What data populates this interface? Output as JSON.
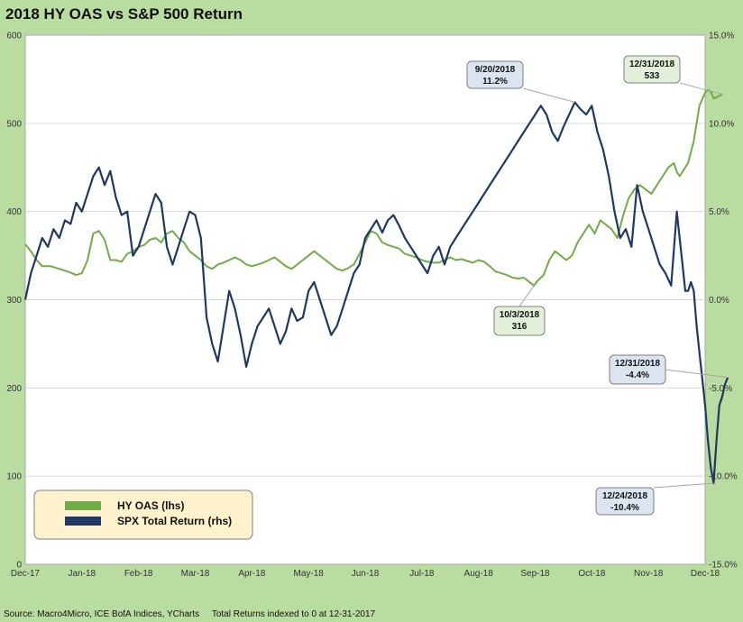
{
  "header": {
    "title": "2018 HY OAS vs S&P 500 Return"
  },
  "footer": {
    "source": "Source: Macro4Micro, ICE BofA Indices, YCharts",
    "note": "Total Returns indexed to 0 at 12-31-2017"
  },
  "colors": {
    "oas": "#70ad47",
    "spx": "#1f3864",
    "background": "#b9dca0",
    "plot": "#ffffff",
    "callout_fill": "#dbe5f1",
    "callout_fill_green": "#e2efd9",
    "legend_fill": "#fff2cc"
  },
  "chart_data": {
    "type": "line",
    "title": "2018 HY OAS vs S&P 500 Return",
    "x_tick_labels": [
      "Dec-17",
      "Jan-18",
      "Feb-18",
      "Mar-18",
      "Apr-18",
      "May-18",
      "Jun-18",
      "Jul-18",
      "Aug-18",
      "Sep-18",
      "Oct-18",
      "Nov-18",
      "Dec-18"
    ],
    "y_left": {
      "min": 0,
      "max": 600,
      "ticks": [
        "0",
        "100",
        "200",
        "300",
        "400",
        "500",
        "600"
      ]
    },
    "y_right": {
      "min": -15,
      "max": 15,
      "ticks": [
        "-15.0%",
        "-10.0%",
        "-5.0%",
        "0.0%",
        "5.0%",
        "10.0%",
        "15.0%"
      ]
    },
    "grid": "horizontal",
    "legend_position": "bottom-left",
    "series": [
      {
        "name": "HY OAS (lhs)",
        "axis": "left",
        "color": "#70ad47",
        "points": [
          [
            0,
            363
          ],
          [
            0.1,
            355
          ],
          [
            0.2,
            345
          ],
          [
            0.3,
            338
          ],
          [
            0.45,
            338
          ],
          [
            0.6,
            335
          ],
          [
            0.75,
            332
          ],
          [
            0.9,
            328
          ],
          [
            1.0,
            330
          ],
          [
            1.1,
            345
          ],
          [
            1.2,
            375
          ],
          [
            1.3,
            378
          ],
          [
            1.4,
            368
          ],
          [
            1.5,
            345
          ],
          [
            1.6,
            345
          ],
          [
            1.7,
            343
          ],
          [
            1.8,
            352
          ],
          [
            1.9,
            355
          ],
          [
            2.0,
            360
          ],
          [
            2.1,
            362
          ],
          [
            2.2,
            368
          ],
          [
            2.3,
            370
          ],
          [
            2.4,
            365
          ],
          [
            2.5,
            375
          ],
          [
            2.6,
            378
          ],
          [
            2.7,
            370
          ],
          [
            2.8,
            365
          ],
          [
            2.9,
            355
          ],
          [
            3.0,
            350
          ],
          [
            3.1,
            345
          ],
          [
            3.2,
            338
          ],
          [
            3.3,
            335
          ],
          [
            3.4,
            340
          ],
          [
            3.5,
            342
          ],
          [
            3.6,
            345
          ],
          [
            3.7,
            348
          ],
          [
            3.8,
            345
          ],
          [
            3.9,
            340
          ],
          [
            4.0,
            338
          ],
          [
            4.1,
            340
          ],
          [
            4.2,
            342
          ],
          [
            4.3,
            345
          ],
          [
            4.4,
            348
          ],
          [
            4.5,
            343
          ],
          [
            4.6,
            338
          ],
          [
            4.7,
            335
          ],
          [
            4.8,
            340
          ],
          [
            4.9,
            345
          ],
          [
            5.0,
            350
          ],
          [
            5.1,
            355
          ],
          [
            5.2,
            350
          ],
          [
            5.3,
            345
          ],
          [
            5.4,
            340
          ],
          [
            5.5,
            335
          ],
          [
            5.6,
            333
          ],
          [
            5.7,
            336
          ],
          [
            5.8,
            340
          ],
          [
            5.9,
            352
          ],
          [
            6.0,
            365
          ],
          [
            6.1,
            378
          ],
          [
            6.2,
            375
          ],
          [
            6.3,
            365
          ],
          [
            6.4,
            362
          ],
          [
            6.5,
            360
          ],
          [
            6.6,
            358
          ],
          [
            6.7,
            352
          ],
          [
            6.8,
            350
          ],
          [
            6.9,
            348
          ],
          [
            7.0,
            345
          ],
          [
            7.1,
            343
          ],
          [
            7.2,
            342
          ],
          [
            7.3,
            342
          ],
          [
            7.4,
            345
          ],
          [
            7.5,
            348
          ],
          [
            7.6,
            345
          ],
          [
            7.7,
            346
          ],
          [
            7.8,
            344
          ],
          [
            7.9,
            342
          ],
          [
            8.0,
            345
          ],
          [
            8.1,
            343
          ],
          [
            8.2,
            338
          ],
          [
            8.3,
            332
          ],
          [
            8.4,
            330
          ],
          [
            8.5,
            328
          ],
          [
            8.6,
            325
          ],
          [
            8.7,
            324
          ],
          [
            8.8,
            325
          ],
          [
            8.9,
            320
          ],
          [
            8.98,
            316
          ],
          [
            9.05,
            322
          ],
          [
            9.15,
            328
          ],
          [
            9.25,
            345
          ],
          [
            9.35,
            355
          ],
          [
            9.45,
            350
          ],
          [
            9.55,
            345
          ],
          [
            9.65,
            350
          ],
          [
            9.75,
            365
          ],
          [
            9.85,
            375
          ],
          [
            9.95,
            385
          ],
          [
            10.05,
            375
          ],
          [
            10.15,
            390
          ],
          [
            10.25,
            385
          ],
          [
            10.35,
            380
          ],
          [
            10.45,
            370
          ],
          [
            10.55,
            395
          ],
          [
            10.65,
            415
          ],
          [
            10.75,
            425
          ],
          [
            10.85,
            430
          ],
          [
            10.95,
            425
          ],
          [
            11.05,
            420
          ],
          [
            11.15,
            430
          ],
          [
            11.25,
            440
          ],
          [
            11.35,
            450
          ],
          [
            11.45,
            455
          ],
          [
            11.5,
            445
          ],
          [
            11.55,
            440
          ],
          [
            11.6,
            445
          ],
          [
            11.7,
            455
          ],
          [
            11.8,
            480
          ],
          [
            11.9,
            520
          ],
          [
            12.0,
            535
          ],
          [
            12.05,
            538
          ],
          [
            12.1,
            536
          ],
          [
            12.15,
            528
          ],
          [
            12.22,
            530
          ],
          [
            12.3,
            533
          ]
        ]
      },
      {
        "name": "SPX Total Return (rhs)",
        "axis": "right",
        "color": "#1f3864",
        "points": [
          [
            0,
            0.0
          ],
          [
            0.1,
            1.5
          ],
          [
            0.2,
            2.5
          ],
          [
            0.3,
            3.5
          ],
          [
            0.4,
            3.0
          ],
          [
            0.5,
            4.0
          ],
          [
            0.6,
            3.5
          ],
          [
            0.7,
            4.5
          ],
          [
            0.8,
            4.3
          ],
          [
            0.9,
            5.5
          ],
          [
            1.0,
            5.0
          ],
          [
            1.1,
            6.0
          ],
          [
            1.2,
            7.0
          ],
          [
            1.3,
            7.5
          ],
          [
            1.4,
            6.5
          ],
          [
            1.5,
            7.3
          ],
          [
            1.6,
            5.8
          ],
          [
            1.7,
            4.8
          ],
          [
            1.8,
            5.0
          ],
          [
            1.9,
            2.5
          ],
          [
            2.0,
            3.0
          ],
          [
            2.1,
            4.0
          ],
          [
            2.2,
            5.0
          ],
          [
            2.3,
            6.0
          ],
          [
            2.4,
            5.5
          ],
          [
            2.5,
            3.0
          ],
          [
            2.6,
            2.0
          ],
          [
            2.7,
            3.0
          ],
          [
            2.8,
            4.0
          ],
          [
            2.9,
            5.0
          ],
          [
            3.0,
            4.8
          ],
          [
            3.1,
            3.5
          ],
          [
            3.2,
            -1.0
          ],
          [
            3.3,
            -2.5
          ],
          [
            3.4,
            -3.5
          ],
          [
            3.5,
            -1.5
          ],
          [
            3.6,
            0.5
          ],
          [
            3.7,
            -0.5
          ],
          [
            3.8,
            -2.0
          ],
          [
            3.9,
            -3.8
          ],
          [
            4.0,
            -2.5
          ],
          [
            4.1,
            -1.5
          ],
          [
            4.2,
            -1.0
          ],
          [
            4.3,
            -0.5
          ],
          [
            4.4,
            -1.5
          ],
          [
            4.5,
            -2.5
          ],
          [
            4.6,
            -1.8
          ],
          [
            4.7,
            -0.5
          ],
          [
            4.8,
            -1.2
          ],
          [
            4.9,
            -1.0
          ],
          [
            5.0,
            0.5
          ],
          [
            5.1,
            1.0
          ],
          [
            5.2,
            0.0
          ],
          [
            5.3,
            -1.0
          ],
          [
            5.4,
            -2.0
          ],
          [
            5.5,
            -1.5
          ],
          [
            5.6,
            -0.5
          ],
          [
            5.7,
            0.5
          ],
          [
            5.8,
            1.5
          ],
          [
            5.9,
            2.0
          ],
          [
            6.0,
            3.5
          ],
          [
            6.1,
            4.0
          ],
          [
            6.2,
            4.5
          ],
          [
            6.3,
            3.8
          ],
          [
            6.4,
            4.5
          ],
          [
            6.5,
            4.8
          ],
          [
            6.6,
            4.2
          ],
          [
            6.7,
            3.5
          ],
          [
            6.8,
            3.0
          ],
          [
            6.9,
            2.5
          ],
          [
            7.0,
            2.0
          ],
          [
            7.1,
            1.5
          ],
          [
            7.2,
            2.5
          ],
          [
            7.3,
            3.0
          ],
          [
            7.4,
            2.0
          ],
          [
            7.5,
            3.0
          ],
          [
            7.6,
            3.5
          ],
          [
            7.7,
            4.0
          ],
          [
            7.8,
            4.5
          ],
          [
            7.9,
            5.0
          ],
          [
            8.0,
            5.5
          ],
          [
            8.1,
            6.0
          ],
          [
            8.2,
            6.5
          ],
          [
            8.3,
            7.0
          ],
          [
            8.4,
            7.5
          ],
          [
            8.5,
            8.0
          ],
          [
            8.6,
            8.5
          ],
          [
            8.7,
            9.0
          ],
          [
            8.8,
            9.5
          ],
          [
            8.9,
            10.0
          ],
          [
            9.0,
            10.5
          ],
          [
            9.1,
            11.0
          ],
          [
            9.2,
            10.5
          ],
          [
            9.3,
            9.5
          ],
          [
            9.4,
            9.0
          ],
          [
            9.5,
            9.8
          ],
          [
            9.6,
            10.5
          ],
          [
            9.7,
            11.2
          ],
          [
            9.8,
            10.8
          ],
          [
            9.9,
            10.5
          ],
          [
            10.0,
            11.0
          ],
          [
            10.1,
            9.5
          ],
          [
            10.2,
            8.5
          ],
          [
            10.3,
            7.0
          ],
          [
            10.4,
            5.0
          ],
          [
            10.5,
            3.5
          ],
          [
            10.6,
            4.0
          ],
          [
            10.7,
            3.0
          ],
          [
            10.8,
            6.5
          ],
          [
            10.9,
            5.0
          ],
          [
            11.0,
            4.0
          ],
          [
            11.1,
            3.0
          ],
          [
            11.2,
            2.0
          ],
          [
            11.3,
            1.5
          ],
          [
            11.4,
            0.8
          ],
          [
            11.5,
            5.0
          ],
          [
            11.55,
            3.5
          ],
          [
            11.6,
            2.0
          ],
          [
            11.65,
            0.5
          ],
          [
            11.7,
            0.5
          ],
          [
            11.75,
            1.0
          ],
          [
            11.8,
            0.5
          ],
          [
            11.85,
            -1.5
          ],
          [
            11.9,
            -3.0
          ],
          [
            11.95,
            -4.5
          ],
          [
            12.0,
            -6.0
          ],
          [
            12.05,
            -8.0
          ],
          [
            12.1,
            -9.5
          ],
          [
            12.15,
            -10.4
          ],
          [
            12.2,
            -8.0
          ],
          [
            12.25,
            -6.0
          ],
          [
            12.3,
            -5.5
          ],
          [
            12.35,
            -4.8
          ],
          [
            12.4,
            -4.4
          ]
        ]
      }
    ],
    "annotations": [
      {
        "date": "9/20/2018",
        "value": "11.2%"
      },
      {
        "date": "12/31/2018",
        "value": "533"
      },
      {
        "date": "10/3/2018",
        "value": "316"
      },
      {
        "date": "12/31/2018",
        "value": "-4.4%"
      },
      {
        "date": "12/24/2018",
        "value": "-10.4%"
      }
    ]
  }
}
